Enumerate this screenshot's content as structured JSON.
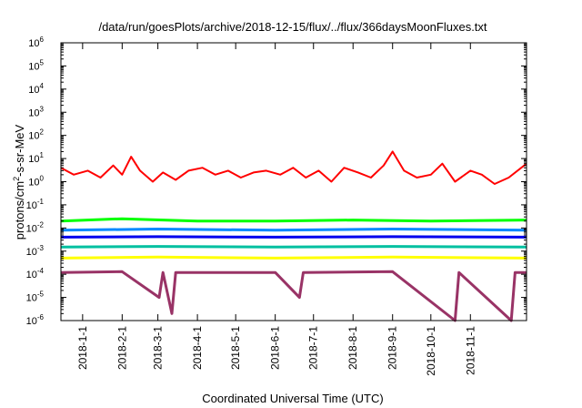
{
  "chart_data": {
    "type": "line",
    "title": "/data/run/goesPlots/archive/2018-12-15/flux/../flux/366daysMoonFluxes.txt",
    "xlabel": "Coordinated Universal Time (UTC)",
    "ylabel": {
      "prefix": "protons/cm",
      "superscript": "2",
      "suffix": "-s-sr-MeV"
    },
    "scale": {
      "y": "log"
    },
    "xlim": [
      "2017-12-15",
      "2018-12-15"
    ],
    "ylim": [
      1e-06,
      1000000.0
    ],
    "x_ticks": [
      {
        "date": "2018-01-01",
        "label": "2018-1-1"
      },
      {
        "date": "2018-02-01",
        "label": "2018-2-1"
      },
      {
        "date": "2018-03-01",
        "label": "2018-3-1"
      },
      {
        "date": "2018-04-01",
        "label": "2018-4-1"
      },
      {
        "date": "2018-05-01",
        "label": "2018-5-1"
      },
      {
        "date": "2018-06-01",
        "label": "2018-6-1"
      },
      {
        "date": "2018-07-01",
        "label": "2018-7-1"
      },
      {
        "date": "2018-08-01",
        "label": "2018-8-1"
      },
      {
        "date": "2018-09-01",
        "label": "2018-9-1"
      },
      {
        "date": "2018-10-01",
        "label": "2018-10-1"
      },
      {
        "date": "2018-11-01",
        "label": "2018-11-1"
      }
    ],
    "y_ticks": [
      {
        "value": 1e-06,
        "base": "10",
        "exp": "-6"
      },
      {
        "value": 1e-05,
        "base": "10",
        "exp": "-5"
      },
      {
        "value": 0.0001,
        "base": "10",
        "exp": "-4"
      },
      {
        "value": 0.001,
        "base": "10",
        "exp": "-3"
      },
      {
        "value": 0.01,
        "base": "10",
        "exp": "-2"
      },
      {
        "value": 0.1,
        "base": "10",
        "exp": "-1"
      },
      {
        "value": 1,
        "base": "10",
        "exp": "0"
      },
      {
        "value": 10,
        "base": "10",
        "exp": "1"
      },
      {
        "value": 100,
        "base": "10",
        "exp": "2"
      },
      {
        "value": 1000,
        "base": "10",
        "exp": "3"
      },
      {
        "value": 10000,
        "base": "10",
        "exp": "4"
      },
      {
        "value": 100000,
        "base": "10",
        "exp": "5"
      },
      {
        "value": 1000000,
        "base": "10",
        "exp": "6"
      }
    ],
    "grid": false,
    "legend": "none",
    "series": [
      {
        "color": "#ff0000",
        "points": [
          [
            "2017-12-15",
            4.0
          ],
          [
            "2017-12-25",
            2.0
          ],
          [
            "2018-01-05",
            3.0
          ],
          [
            "2018-01-15",
            1.5
          ],
          [
            "2018-01-25",
            5.0
          ],
          [
            "2018-02-01",
            2.0
          ],
          [
            "2018-02-08",
            12.0
          ],
          [
            "2018-02-15",
            3.0
          ],
          [
            "2018-02-25",
            1.0
          ],
          [
            "2018-03-05",
            2.5
          ],
          [
            "2018-03-15",
            1.2
          ],
          [
            "2018-03-25",
            3.0
          ],
          [
            "2018-04-05",
            4.0
          ],
          [
            "2018-04-15",
            2.0
          ],
          [
            "2018-04-25",
            3.0
          ],
          [
            "2018-05-05",
            1.5
          ],
          [
            "2018-05-15",
            2.5
          ],
          [
            "2018-05-25",
            3.0
          ],
          [
            "2018-06-05",
            2.0
          ],
          [
            "2018-06-15",
            4.0
          ],
          [
            "2018-06-25",
            1.5
          ],
          [
            "2018-07-05",
            3.0
          ],
          [
            "2018-07-15",
            1.0
          ],
          [
            "2018-07-25",
            4.0
          ],
          [
            "2018-08-05",
            2.5
          ],
          [
            "2018-08-15",
            1.5
          ],
          [
            "2018-08-25",
            5.0
          ],
          [
            "2018-09-01",
            20.0
          ],
          [
            "2018-09-10",
            3.0
          ],
          [
            "2018-09-20",
            1.5
          ],
          [
            "2018-10-01",
            2.0
          ],
          [
            "2018-10-10",
            6.0
          ],
          [
            "2018-10-20",
            1.0
          ],
          [
            "2018-11-01",
            3.0
          ],
          [
            "2018-11-10",
            2.0
          ],
          [
            "2018-11-20",
            0.8
          ],
          [
            "2018-12-01",
            1.5
          ],
          [
            "2018-12-15",
            6.0
          ]
        ]
      },
      {
        "color": "#00ff00",
        "points": [
          [
            "2017-12-15",
            0.02
          ],
          [
            "2018-02-01",
            0.025
          ],
          [
            "2018-04-01",
            0.02
          ],
          [
            "2018-06-01",
            0.02
          ],
          [
            "2018-08-01",
            0.022
          ],
          [
            "2018-10-01",
            0.02
          ],
          [
            "2018-12-15",
            0.022
          ]
        ]
      },
      {
        "color": "#0088ff",
        "points": [
          [
            "2017-12-15",
            0.008
          ],
          [
            "2018-03-01",
            0.009
          ],
          [
            "2018-06-01",
            0.008
          ],
          [
            "2018-09-01",
            0.009
          ],
          [
            "2018-12-15",
            0.008
          ]
        ]
      },
      {
        "color": "#0000ee",
        "points": [
          [
            "2017-12-15",
            0.004
          ],
          [
            "2018-03-01",
            0.0042
          ],
          [
            "2018-06-01",
            0.004
          ],
          [
            "2018-09-01",
            0.0042
          ],
          [
            "2018-12-15",
            0.004
          ]
        ]
      },
      {
        "color": "#00c0a0",
        "points": [
          [
            "2017-12-15",
            0.0015
          ],
          [
            "2018-03-01",
            0.0016
          ],
          [
            "2018-06-01",
            0.0015
          ],
          [
            "2018-09-01",
            0.0016
          ],
          [
            "2018-12-15",
            0.0015
          ]
        ]
      },
      {
        "color": "#ffff00",
        "points": [
          [
            "2017-12-15",
            0.0005
          ],
          [
            "2018-03-01",
            0.00055
          ],
          [
            "2018-06-01",
            0.0005
          ],
          [
            "2018-09-01",
            0.00055
          ],
          [
            "2018-12-15",
            0.0005
          ]
        ]
      },
      {
        "color": "#993366",
        "points": [
          [
            "2017-12-15",
            0.00012
          ],
          [
            "2018-02-01",
            0.00013
          ],
          [
            "2018-03-02",
            1e-05
          ],
          [
            "2018-03-05",
            0.00012
          ],
          [
            "2018-03-12",
            2e-06
          ],
          [
            "2018-03-15",
            0.00012
          ],
          [
            "2018-06-01",
            0.00012
          ],
          [
            "2018-06-20",
            1e-05
          ],
          [
            "2018-06-23",
            0.00012
          ],
          [
            "2018-09-01",
            0.00013
          ],
          [
            "2018-10-20",
            1e-06
          ],
          [
            "2018-10-23",
            0.00012
          ],
          [
            "2018-12-03",
            1e-06
          ],
          [
            "2018-12-06",
            0.00012
          ],
          [
            "2018-12-15",
            0.00012
          ]
        ]
      }
    ]
  }
}
